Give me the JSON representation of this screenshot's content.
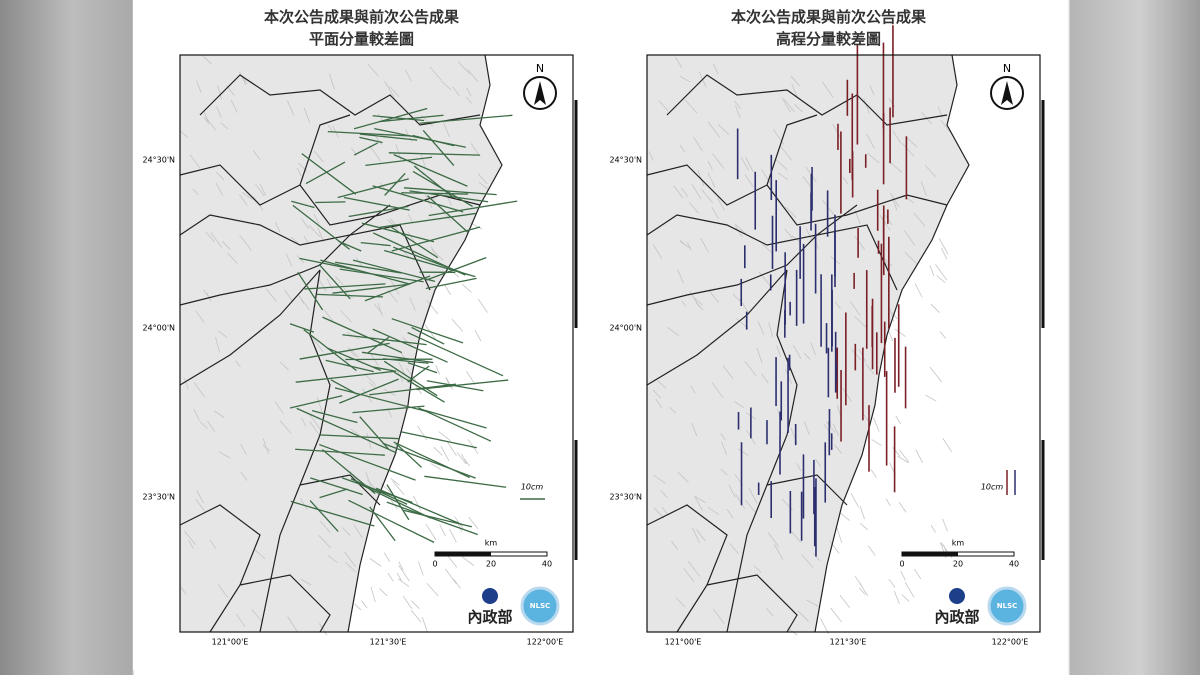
{
  "panels": [
    {
      "title_lines": [
        "本次公告成果與前次公告成果",
        "平面分量較差圖"
      ],
      "north": "N",
      "lat_labels": [
        "24°30'N",
        "24°00'N",
        "23°30'N"
      ],
      "lon_labels": [
        "121°00'E",
        "121°30'E",
        "122°00'E"
      ],
      "scale": {
        "unit": "km",
        "ticks": [
          0,
          20,
          40
        ]
      },
      "legend": "10cm",
      "logo_text": "內政部",
      "logo_badge": "NLSC"
    },
    {
      "title_lines": [
        "本次公告成果與前次公告成果",
        "高程分量較差圖"
      ],
      "north": "N",
      "lat_labels": [
        "24°30'N",
        "24°00'N",
        "23°30'N"
      ],
      "lon_labels": [
        "121°00'E",
        "121°30'E",
        "122°00'E"
      ],
      "scale": {
        "unit": "km",
        "ticks": [
          0,
          20,
          40
        ]
      },
      "legend": "10cm",
      "logo_text": "內政部",
      "logo_badge": "NLSC"
    }
  ]
}
